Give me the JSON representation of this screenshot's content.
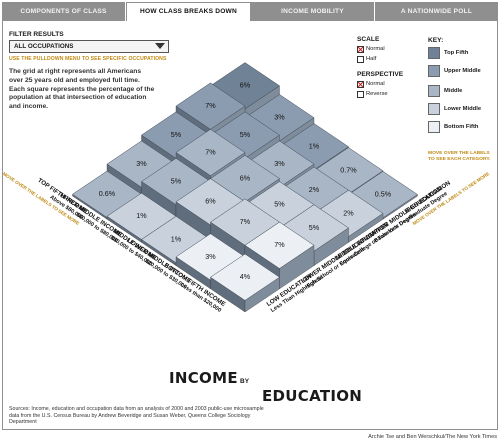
{
  "tabs": [
    {
      "label": "COMPONENTS OF CLASS",
      "active": false
    },
    {
      "label": "HOW CLASS BREAKS DOWN",
      "active": true
    },
    {
      "label": "INCOME MOBILITY",
      "active": false
    },
    {
      "label": "A NATIONWIDE POLL",
      "active": false
    }
  ],
  "filter": {
    "label": "FILTER RESULTS",
    "selected": "ALL OCCUPATIONS",
    "hint": "USE THE PULLDOWN MENU TO SEE SPECIFIC OCCUPATIONS"
  },
  "intro": "The grid at right represents all Americans over 25 years old and employed full time. Each square represents the percentage of the population at that intersection of education and income.",
  "scale": {
    "heading": "SCALE",
    "options": [
      {
        "label": "Normal",
        "checked": true
      },
      {
        "label": "Half",
        "checked": false
      }
    ]
  },
  "perspective": {
    "heading": "PERSPECTIVE",
    "options": [
      {
        "label": "Normal",
        "checked": true
      },
      {
        "label": "Reverse",
        "checked": false
      }
    ]
  },
  "key": {
    "heading": "KEY:",
    "items": [
      {
        "label": "Top Fifth",
        "color": "#6f8296"
      },
      {
        "label": "Upper Middle",
        "color": "#8b9bb0"
      },
      {
        "label": "Middle",
        "color": "#a9b6c6"
      },
      {
        "label": "Lower Middle",
        "color": "#c8d1dc"
      },
      {
        "label": "Bottom Fifth",
        "color": "#ecf0f4"
      }
    ],
    "hint": "MOVE OVER THE LABELS TO SEE EACH CATEGORY."
  },
  "grid": {
    "income_rows": [
      {
        "name": "TOP FIFTH INCOME",
        "range": "Above $80,000",
        "hint": "MOVE OVER THE LABELS TO SEE MORE"
      },
      {
        "name": "UPPER MIDDLE INCOME",
        "range": "$60,000 to $80,000",
        "hint": ""
      },
      {
        "name": "MIDDLE INCOME",
        "range": "$30,000 to $40,000",
        "hint": ""
      },
      {
        "name": "LOWER MIDDLE INCOME",
        "range": "$20,000 to $30,000",
        "hint": ""
      },
      {
        "name": "BOTTOM FIFTH INCOME",
        "range": "Less than $20,000",
        "hint": ""
      }
    ],
    "education_cols": [
      {
        "name": "LOW EDUCATION",
        "desc": "Less Than High School",
        "hint": ""
      },
      {
        "name": "LOWER MIDDLE EDUCATION",
        "desc": "High School or Equivalent",
        "hint": ""
      },
      {
        "name": "MIDDLE EDUCATION",
        "desc": "Some College or Two-Year Degree",
        "hint": ""
      },
      {
        "name": "UPPER MIDDLE EDUCATION",
        "desc": "Bachelor's Degree",
        "hint": ""
      },
      {
        "name": "HIGH EDUCATION",
        "desc": "Graduate Degree",
        "hint": "MOVE OVER THE LABELS TO SEE MORE"
      }
    ],
    "cells": [
      {
        "income": 0,
        "education": 0,
        "pct": 0.6,
        "label": "0.6%"
      },
      {
        "income": 0,
        "education": 1,
        "pct": 3,
        "label": "3%"
      },
      {
        "income": 0,
        "education": 2,
        "pct": 5,
        "label": "5%"
      },
      {
        "income": 0,
        "education": 3,
        "pct": 7,
        "label": "7%"
      },
      {
        "income": 0,
        "education": 4,
        "pct": 6,
        "label": "6%"
      },
      {
        "income": 1,
        "education": 0,
        "pct": 1,
        "label": "1%"
      },
      {
        "income": 1,
        "education": 1,
        "pct": 5,
        "label": "5%"
      },
      {
        "income": 1,
        "education": 2,
        "pct": 7,
        "label": "7%"
      },
      {
        "income": 1,
        "education": 3,
        "pct": 5,
        "label": "5%"
      },
      {
        "income": 1,
        "education": 4,
        "pct": 3,
        "label": "3%"
      },
      {
        "income": 2,
        "education": 0,
        "pct": 1,
        "label": "1%"
      },
      {
        "income": 2,
        "education": 1,
        "pct": 6,
        "label": "6%"
      },
      {
        "income": 2,
        "education": 2,
        "pct": 6,
        "label": "6%"
      },
      {
        "income": 2,
        "education": 3,
        "pct": 3,
        "label": "3%"
      },
      {
        "income": 2,
        "education": 4,
        "pct": 1,
        "label": "1%"
      },
      {
        "income": 3,
        "education": 0,
        "pct": 3,
        "label": "3%"
      },
      {
        "income": 3,
        "education": 1,
        "pct": 7,
        "label": "7%"
      },
      {
        "income": 3,
        "education": 2,
        "pct": 5,
        "label": "5%"
      },
      {
        "income": 3,
        "education": 3,
        "pct": 2,
        "label": "2%"
      },
      {
        "income": 3,
        "education": 4,
        "pct": 0.7,
        "label": "0.7%"
      },
      {
        "income": 4,
        "education": 0,
        "pct": 4,
        "label": "4%"
      },
      {
        "income": 4,
        "education": 1,
        "pct": 7,
        "label": "7%"
      },
      {
        "income": 4,
        "education": 2,
        "pct": 5,
        "label": "5%"
      },
      {
        "income": 4,
        "education": 3,
        "pct": 2,
        "label": "2%"
      },
      {
        "income": 4,
        "education": 4,
        "pct": 0.5,
        "label": "0.5%"
      }
    ]
  },
  "title": {
    "income": "INCOME",
    "by": "BY",
    "education": "EDUCATION"
  },
  "sources": "Sources: Income, education and occupation data from an analysis of 2000 and 2003 public-use microsample data from the U.S. Census Bureau by Andrew Beveridge and Susan Weber, Queens College Sociology Department",
  "credit": "Archie Tse and Ben Werschkul/The New York Times"
}
